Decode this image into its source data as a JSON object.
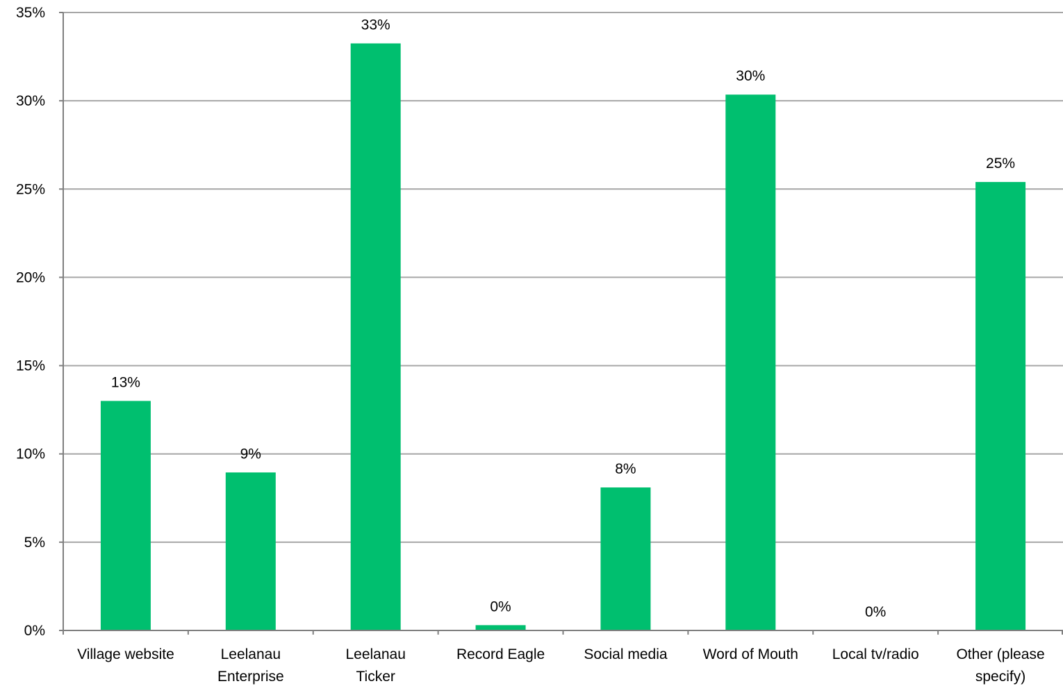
{
  "chart_data": {
    "type": "bar",
    "title": "",
    "xlabel": "",
    "ylabel": "",
    "categories": [
      "Village website",
      "Leelanau Enterprise",
      "Leelanau Ticker",
      "Record Eagle",
      "Social media",
      "Word of Mouth",
      "Local tv/radio",
      "Other (please specify)"
    ],
    "category_label_lines": [
      [
        "Village website"
      ],
      [
        "Leelanau",
        "Enterprise"
      ],
      [
        "Leelanau",
        "Ticker"
      ],
      [
        "Record Eagle"
      ],
      [
        "Social media"
      ],
      [
        "Word of Mouth"
      ],
      [
        "Local tv/radio"
      ],
      [
        "Other (please",
        "specify)"
      ]
    ],
    "values": [
      13.0,
      8.95,
      33.25,
      0.3,
      8.1,
      30.35,
      0,
      25.4
    ],
    "data_labels": [
      "13%",
      "9%",
      "33%",
      "0%",
      "8%",
      "30%",
      "0%",
      "25%"
    ],
    "ylim": [
      0,
      35
    ],
    "y_ticks": [
      0,
      5,
      10,
      15,
      20,
      25,
      30,
      35
    ],
    "y_tick_labels": [
      "0%",
      "5%",
      "10%",
      "15%",
      "20%",
      "25%",
      "30%",
      "35%"
    ],
    "grid": true,
    "legend": "none",
    "colors": {
      "bar": "#00BF6F",
      "grid": "#A6A6A6",
      "axis": "#7F7F7F",
      "text": "#000000"
    }
  }
}
